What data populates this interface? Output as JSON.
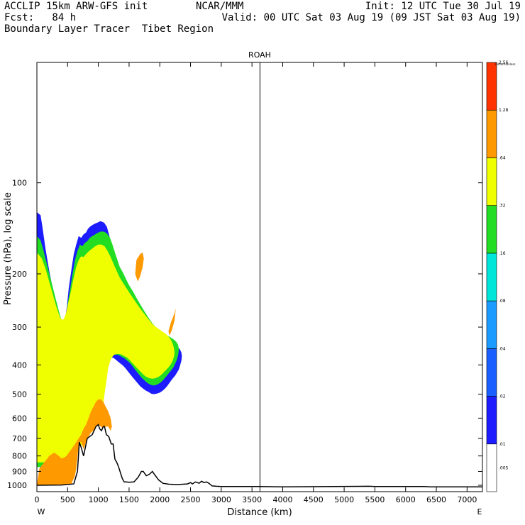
{
  "header": {
    "model": "ACCLIP 15km ARW-GFS init",
    "org": "NCAR/MMM",
    "init": "Init: 12 UTC Tue 30 Jul 19",
    "fcst": "Fcst:   84 h",
    "valid": "Valid: 00 UTC Sat 03 Aug 19 (09 JST Sat 03 Aug 19)",
    "field": "Boundary Layer Tracer  Tibet Region"
  },
  "chart_data": {
    "type": "heatmap",
    "title": "ROAH",
    "xlabel": "Distance (km)",
    "ylabel": "Pressure (hPa), log scale",
    "x_left_label": "W",
    "x_right_label": "E",
    "xlim": [
      0,
      7250
    ],
    "x_ticks": [
      0,
      500,
      1000,
      1500,
      2000,
      2500,
      3000,
      3500,
      4000,
      4500,
      5000,
      5500,
      6000,
      6500,
      7000
    ],
    "ylim": [
      1050,
      40
    ],
    "y_log": true,
    "y_ticks": [
      100,
      200,
      300,
      400,
      500,
      600,
      700,
      800,
      900,
      1000
    ],
    "vertical_marker_km": 3630,
    "colorbar": {
      "title": "Dimensionless",
      "levels": [
        ".005",
        ".01",
        ".02",
        ".04",
        ".08",
        ".16",
        ".32",
        ".64",
        "1.28",
        "2.56"
      ],
      "colors": [
        "#ffffff",
        "#1c1cff",
        "#1b5eff",
        "#1a9bff",
        "#00e6d8",
        "#22dd22",
        "#f0ff00",
        "#ff9900",
        "#ff3300"
      ]
    },
    "terrain": {
      "name": "terrain",
      "x_km": [
        0,
        400,
        600,
        660,
        690,
        720,
        760,
        820,
        900,
        960,
        1000,
        1020,
        1050,
        1080,
        1100,
        1130,
        1170,
        1210,
        1240,
        1270,
        1300,
        1330,
        1360,
        1390,
        1420,
        1450,
        1500,
        1580,
        1650,
        1700,
        1730,
        1780,
        1830,
        1880,
        1920,
        1980,
        2050,
        2150,
        2300,
        2450,
        2500,
        2530,
        2580,
        2640,
        2680,
        2720,
        2760,
        2800,
        2850,
        2920,
        3000,
        3600,
        4000,
        5400,
        5500,
        6300,
        6400,
        7250
      ],
      "p_hpa": [
        1000,
        998,
        990,
        900,
        720,
        750,
        800,
        700,
        680,
        640,
        630,
        650,
        660,
        640,
        640,
        680,
        690,
        730,
        730,
        820,
        840,
        870,
        910,
        950,
        975,
        975,
        978,
        975,
        940,
        900,
        900,
        930,
        920,
        900,
        925,
        960,
        985,
        992,
        995,
        990,
        980,
        990,
        975,
        985,
        970,
        980,
        975,
        985,
        1005,
        1008,
        1010,
        1010,
        1012,
        1008,
        1010,
        1010,
        1012,
        1012
      ]
    },
    "tracer_regions": [
      {
        "name": ".005 contour",
        "level": 0.005,
        "color_index": 1,
        "x_km": [
          0,
          60,
          90,
          140,
          200,
          260,
          330,
          380,
          430,
          460,
          490,
          520,
          560,
          600,
          640,
          680,
          720,
          760,
          800,
          830,
          860,
          900,
          960,
          1000,
          1030,
          1080,
          1100,
          1140,
          1180,
          1200,
          1230,
          1260,
          1300,
          1340,
          1380,
          1430,
          1480,
          1530,
          1580,
          1640,
          1700,
          1760,
          1820,
          1880,
          1940,
          2000,
          2060,
          2120,
          2180,
          2220,
          2260,
          2300,
          2330,
          2350,
          2360,
          2350,
          2330,
          2310,
          2280,
          2250,
          2200,
          2160,
          2120,
          2080,
          2040,
          2000,
          1950,
          1900,
          1860,
          1820,
          1770,
          1720,
          1680,
          1640,
          1600,
          1560,
          1520,
          1480,
          1440,
          1400,
          1360,
          1320,
          1280,
          1250,
          1220,
          1190,
          1170,
          1150,
          1110,
          1090,
          1080,
          1060,
          1000,
          940,
          900,
          860,
          820,
          780,
          740,
          700,
          640,
          580,
          520,
          460,
          400,
          350,
          300,
          250,
          200,
          150,
          100,
          50,
          0
        ],
        "p_hpa": [
          125,
          128,
          140,
          165,
          195,
          225,
          262,
          290,
          295,
          282,
          255,
          222,
          195,
          172,
          160,
          150,
          152,
          148,
          146,
          142,
          140,
          138,
          136,
          135,
          134,
          135,
          136,
          140,
          150,
          158,
          170,
          180,
          190,
          200,
          210,
          220,
          232,
          244,
          256,
          268,
          280,
          290,
          300,
          310,
          318,
          324,
          330,
          334,
          338,
          342,
          346,
          350,
          356,
          364,
          374,
          388,
          402,
          414,
          424,
          434,
          446,
          458,
          470,
          480,
          488,
          494,
          498,
          500,
          498,
          492,
          486,
          478,
          470,
          460,
          450,
          440,
          430,
          420,
          410,
          402,
          396,
          390,
          384,
          380,
          378,
          380,
          388,
          400,
          420,
          450,
          480,
          520,
          560,
          580,
          600,
          620,
          640,
          660,
          680,
          700,
          720,
          760,
          800,
          830,
          860,
          880,
          890,
          895,
          898,
          900,
          900,
          900,
          125
        ]
      },
      {
        "name": ".16 contour",
        "level": 0.16,
        "color_index": 5,
        "x_km": [
          0,
          60,
          110,
          170,
          230,
          290,
          350,
          400,
          440,
          470,
          500,
          540,
          580,
          620,
          660,
          700,
          740,
          780,
          820,
          860,
          900,
          950,
          1000,
          1040,
          1080,
          1120,
          1150,
          1190,
          1230,
          1270,
          1310,
          1350,
          1400,
          1450,
          1500,
          1560,
          1620,
          1680,
          1740,
          1800,
          1860,
          1920,
          1980,
          2040,
          2100,
          2150,
          2190,
          2230,
          2270,
          2300,
          2310,
          2300,
          2280,
          2250,
          2220,
          2180,
          2140,
          2100,
          2060,
          2020,
          1980,
          1940,
          1900,
          1860,
          1820,
          1780,
          1740,
          1700,
          1660,
          1620,
          1580,
          1540,
          1500,
          1460,
          1420,
          1380,
          1340,
          1300,
          1260,
          1220,
          1190,
          1160,
          1140,
          1120,
          1100,
          1080,
          1040,
          1000,
          960,
          920,
          880,
          840,
          800,
          760,
          720,
          680,
          640,
          600,
          560,
          520,
          480,
          440,
          400,
          360,
          320,
          280,
          240,
          200,
          160,
          120,
          80,
          40,
          0
        ],
        "p_hpa": [
          150,
          155,
          168,
          188,
          210,
          235,
          262,
          285,
          288,
          276,
          252,
          225,
          200,
          180,
          168,
          160,
          162,
          158,
          156,
          152,
          150,
          148,
          146,
          145,
          145,
          146,
          148,
          152,
          160,
          170,
          180,
          190,
          198,
          208,
          218,
          228,
          240,
          252,
          264,
          276,
          288,
          298,
          306,
          312,
          318,
          322,
          326,
          330,
          336,
          344,
          356,
          370,
          384,
          396,
          408,
          418,
          428,
          438,
          448,
          456,
          462,
          466,
          468,
          466,
          462,
          456,
          448,
          440,
          430,
          420,
          410,
          400,
          392,
          386,
          380,
          376,
          372,
          370,
          370,
          372,
          380,
          392,
          410,
          440,
          470,
          500,
          540,
          560,
          580,
          600,
          620,
          640,
          660,
          680,
          700,
          720,
          740,
          770,
          800,
          820,
          840,
          855,
          860,
          862,
          864,
          866,
          868,
          870,
          870,
          870,
          870,
          870,
          870,
          150
        ]
      },
      {
        "name": ".32 contour",
        "level": 0.32,
        "color_index": 6,
        "x_km": [
          0,
          80,
          140,
          200,
          260,
          320,
          380,
          430,
          470,
          510,
          560,
          600,
          640,
          680,
          720,
          760,
          800,
          850,
          900,
          950,
          1000,
          1050,
          1100,
          1150,
          1200,
          1250,
          1300,
          1350,
          1400,
          1450,
          1500,
          1560,
          1620,
          1680,
          1740,
          1800,
          1860,
          1920,
          1980,
          2040,
          2100,
          2140,
          2180,
          2210,
          2230,
          2240,
          2230,
          2210,
          2180,
          2140,
          2100,
          2060,
          2020,
          1980,
          1940,
          1900,
          1860,
          1820,
          1780,
          1740,
          1700,
          1660,
          1620,
          1580,
          1540,
          1500,
          1460,
          1420,
          1380,
          1340,
          1300,
          1260,
          1220,
          1190,
          1160,
          1140,
          1120,
          1100,
          1080,
          1060,
          1040,
          1000,
          960,
          920,
          880,
          840,
          800,
          760,
          720,
          680,
          640,
          600,
          560,
          520,
          480,
          440,
          400,
          360,
          320,
          280,
          240,
          200,
          160,
          120,
          80,
          40,
          0
        ],
        "p_hpa": [
          170,
          178,
          192,
          212,
          234,
          258,
          280,
          284,
          272,
          250,
          225,
          205,
          190,
          180,
          175,
          176,
          172,
          168,
          165,
          162,
          160,
          160,
          162,
          168,
          176,
          186,
          196,
          206,
          214,
          222,
          230,
          240,
          250,
          260,
          270,
          280,
          290,
          298,
          304,
          310,
          316,
          322,
          330,
          340,
          352,
          364,
          376,
          388,
          398,
          408,
          416,
          424,
          432,
          438,
          442,
          444,
          444,
          442,
          438,
          432,
          424,
          416,
          408,
          400,
          392,
          384,
          378,
          374,
          370,
          368,
          368,
          370,
          378,
          390,
          410,
          440,
          470,
          500,
          540,
          560,
          580,
          600,
          620,
          640,
          660,
          680,
          700,
          720,
          740,
          760,
          780,
          800,
          810,
          818,
          824,
          828,
          830,
          832,
          834,
          836,
          838,
          840,
          840,
          840,
          840,
          840,
          840,
          170
        ]
      },
      {
        "name": ".64 contour near surface",
        "level": 0.64,
        "color_index": 7,
        "x_km": [
          0,
          100,
          200,
          300,
          400,
          480,
          560,
          620,
          640,
          660,
          690,
          720,
          760,
          800,
          840,
          880,
          920,
          960,
          1000,
          1040,
          1080,
          1120,
          1160,
          1200,
          1220,
          1200,
          1160,
          1120,
          1080,
          1040,
          1000,
          960,
          920,
          880,
          840,
          800,
          760,
          720,
          680,
          640,
          600,
          560,
          520,
          480,
          440,
          400,
          360,
          320,
          280,
          240,
          200,
          160,
          120,
          80,
          40,
          0
        ],
        "p_hpa": [
          1000,
          998,
          996,
          995,
          994,
          993,
          990,
          930,
          880,
          800,
          720,
          720,
          760,
          720,
          690,
          670,
          660,
          640,
          630,
          640,
          650,
          640,
          640,
          660,
          640,
          600,
          570,
          550,
          530,
          520,
          520,
          530,
          550,
          570,
          600,
          630,
          650,
          680,
          700,
          720,
          740,
          760,
          780,
          800,
          810,
          815,
          800,
          790,
          780,
          790,
          800,
          820,
          840,
          860,
          880,
          1000
        ]
      },
      {
        "name": ".64 patch upper left",
        "level": 0.64,
        "color_index": 7,
        "x_km": [
          1620,
          1680,
          1720,
          1740,
          1720,
          1680,
          1640,
          1600,
          1620
        ],
        "p_hpa": [
          180,
          172,
          170,
          178,
          190,
          204,
          212,
          200,
          180
        ]
      },
      {
        "name": ".64 patch right",
        "level": 0.64,
        "color_index": 7,
        "x_km": [
          2180,
          2240,
          2260,
          2240,
          2200,
          2160,
          2140,
          2160,
          2180
        ],
        "p_hpa": [
          290,
          270,
          260,
          285,
          305,
          320,
          310,
          300,
          290
        ]
      }
    ]
  }
}
